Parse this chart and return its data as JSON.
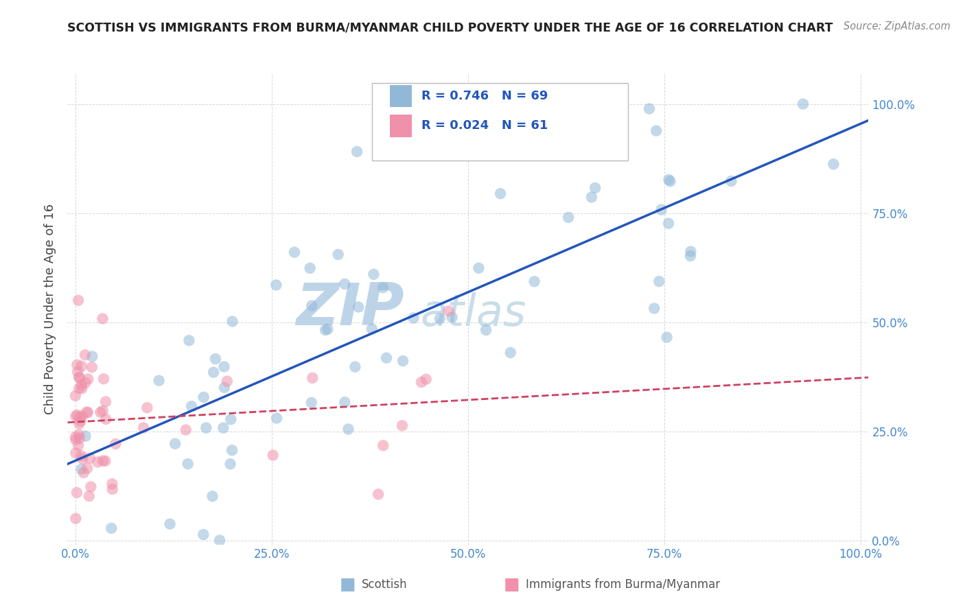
{
  "title": "SCOTTISH VS IMMIGRANTS FROM BURMA/MYANMAR CHILD POVERTY UNDER THE AGE OF 16 CORRELATION CHART",
  "source": "Source: ZipAtlas.com",
  "ylabel": "Child Poverty Under the Age of 16",
  "R_scottish": 0.746,
  "N_scottish": 69,
  "R_burma": 0.024,
  "N_burma": 61,
  "scottish_color": "#92b8d8",
  "burma_color": "#f090aa",
  "trend_scottish_color": "#2255bb",
  "trend_burma_color": "#d04060",
  "watermark_zip_color": "#bdd4e8",
  "watermark_atlas_color": "#c8dde8",
  "background_color": "#ffffff",
  "grid_color": "#cccccc",
  "tick_color": "#4488cc",
  "title_color": "#222222",
  "source_color": "#888888",
  "legend_text_color": "#2255bb",
  "bottom_legend_color": "#555555"
}
